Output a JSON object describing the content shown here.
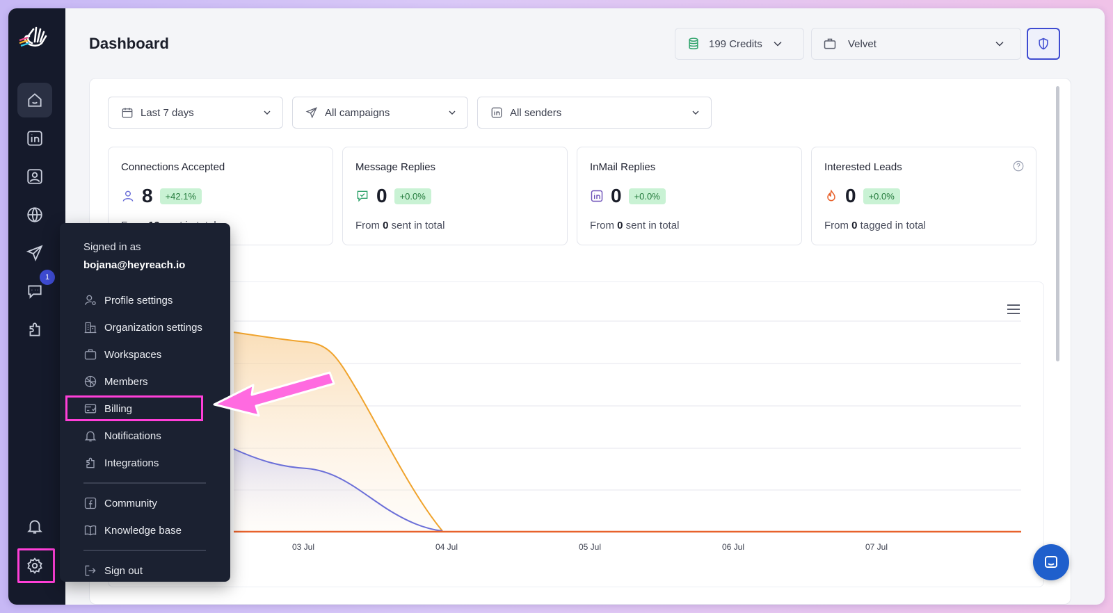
{
  "header": {
    "title": "Dashboard",
    "credits": "199 Credits",
    "workspace": "Velvet"
  },
  "sidebar": {
    "items": [
      {
        "icon": "home-icon"
      },
      {
        "icon": "linkedin-icon"
      },
      {
        "icon": "contacts-icon"
      },
      {
        "icon": "globe-icon"
      },
      {
        "icon": "send-icon"
      },
      {
        "icon": "chat-icon",
        "badge": "1"
      },
      {
        "icon": "puzzle-icon"
      },
      {
        "icon": "bell-icon"
      },
      {
        "icon": "gear-icon"
      }
    ]
  },
  "filters": {
    "date": "Last 7 days",
    "campaigns": "All campaigns",
    "senders": "All senders"
  },
  "stats": [
    {
      "title": "Connections Accepted",
      "value": "8",
      "pct": "+42.1%",
      "sub_prefix": "From ",
      "sub_bold": "19",
      "sub_suffix": " sent in total"
    },
    {
      "title": "Message Replies",
      "value": "0",
      "pct": "+0.0%",
      "sub_prefix": "From ",
      "sub_bold": "0",
      "sub_suffix": " sent in total"
    },
    {
      "title": "InMail Replies",
      "value": "0",
      "pct": "+0.0%",
      "sub_prefix": "From ",
      "sub_bold": "0",
      "sub_suffix": " sent in total"
    },
    {
      "title": "Interested Leads",
      "value": "0",
      "pct": "+0.0%",
      "sub_prefix": "From ",
      "sub_bold": "0",
      "sub_suffix": " tagged in total"
    }
  ],
  "chart": {
    "x_labels": [
      "03 Jul",
      "04 Jul",
      "05 Jul",
      "06 Jul",
      "07 Jul"
    ],
    "colors": {
      "series_a": "#f0a32c",
      "series_b": "#6b6fd8",
      "baseline": "#e8622c"
    }
  },
  "menu": {
    "signed_in_label": "Signed in as",
    "email": "bojana@heyreach.io",
    "items": [
      {
        "label": "Profile settings",
        "icon": "profile-settings-icon"
      },
      {
        "label": "Organization settings",
        "icon": "organization-icon"
      },
      {
        "label": "Workspaces",
        "icon": "briefcase-icon"
      },
      {
        "label": "Members",
        "icon": "members-icon"
      },
      {
        "label": "Billing",
        "icon": "billing-icon"
      },
      {
        "label": "Notifications",
        "icon": "bell-icon"
      },
      {
        "label": "Integrations",
        "icon": "puzzle-icon"
      },
      {
        "label": "Community",
        "icon": "facebook-icon"
      },
      {
        "label": "Knowledge base",
        "icon": "book-icon"
      },
      {
        "label": "Sign out",
        "icon": "sign-out-icon"
      }
    ]
  }
}
